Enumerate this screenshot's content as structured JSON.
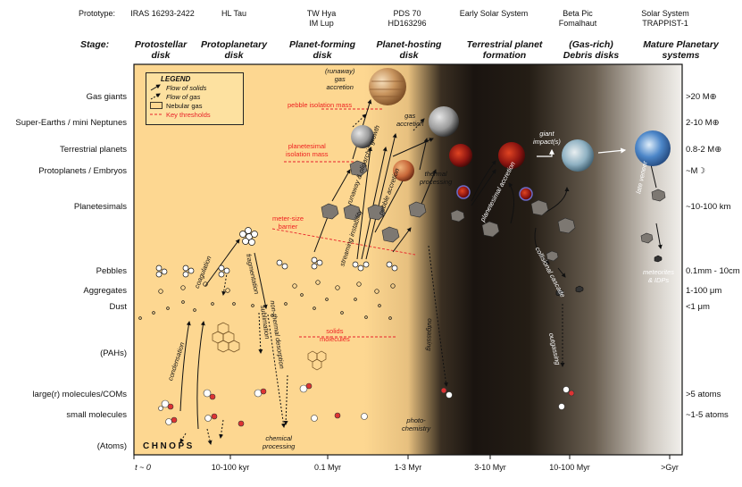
{
  "prototype_label": "Prototype:",
  "prototypes": [
    "IRAS 16293-2422",
    "HL Tau",
    "TW Hya\nIM Lup",
    "PDS 70\nHD163296",
    "Early Solar System",
    "Beta Pic\nFomalhaut",
    "Solar System\nTRAPPIST-1"
  ],
  "stage_label": "Stage:",
  "stages": [
    "Protostellar\ndisk",
    "Protoplanetary\ndisk",
    "Planet-forming\ndisk",
    "Planet-hosting\ndisk",
    "Terrestrial planet\nformation",
    "(Gas-rich)\nDebris disks",
    "Mature Planetary\nsystems"
  ],
  "y_labels": [
    "Gas giants",
    "Super-Earths / mini Neptunes",
    "Terrestrial planets",
    "Protoplanets / Embryos",
    "Planetesimals",
    "Pebbles",
    "Aggregates",
    "Dust",
    "(PAHs)",
    "large(r) molecules/COMs",
    "small molecules",
    "(Atoms)"
  ],
  "right_labels": [
    ">20 M⊕",
    "2-10 M⊕",
    "0.8-2 M⊕",
    "~M☽",
    "~10-100 km",
    "0.1mm - 10cm",
    "1-100 μm",
    "<1 μm",
    ">5 atoms",
    "~1-5 atoms"
  ],
  "time_labels": [
    "t ~ 0",
    "10-100 kyr",
    "0.1 Myr",
    "1-3 Myr",
    "3-10 Myr",
    "10-100 Myr",
    ">Gyr"
  ],
  "legend": {
    "title": "LEGEND",
    "items": [
      "Flow of solids",
      "Flow of gas",
      "Nebular gas",
      "Key thresholds"
    ]
  },
  "atoms_text": "CHNOPS",
  "process_labels": {
    "condensation": "condensation",
    "coagulation": "coagulation",
    "fragmentation": "fragmentation",
    "sublimation": "sublimation",
    "nonthermal": "non-thermal\ndesorption",
    "chemical_processing": "chemical\nprocessing",
    "runaway_growth": "runaway &\noligarchic\ngrowth",
    "streaming_instability": "streaming\ninstability",
    "pebble_accretion": "pebble accretion",
    "runaway_gas_accretion": "(runaway)\ngas\naccretion",
    "gas_accretion": "gas\naccretion",
    "thermal_processing": "thermal\nprocessing",
    "planetesimal_accretion": "planetesimal\naccretion",
    "giant_impacts": "giant\nimpact(s)",
    "late_veneer": "late veneer",
    "collisional_cascade": "collisional\ncascade",
    "outgassing": "outgassing",
    "photochemistry": "photo-\nchemistry",
    "meteorites": "meteorites\n& IDPs"
  },
  "threshold_labels": {
    "pebble_isolation": "pebble isolation mass",
    "planetesimal_isolation": "planetesimal\nisolation mass",
    "meter_size": "meter-size\nbarrier",
    "solids_molecules": "solids\nmolecules"
  },
  "colors": {
    "nebular_gas": "#fdd791",
    "threshold": "#e8222a",
    "dark_region": "#1a1410"
  }
}
